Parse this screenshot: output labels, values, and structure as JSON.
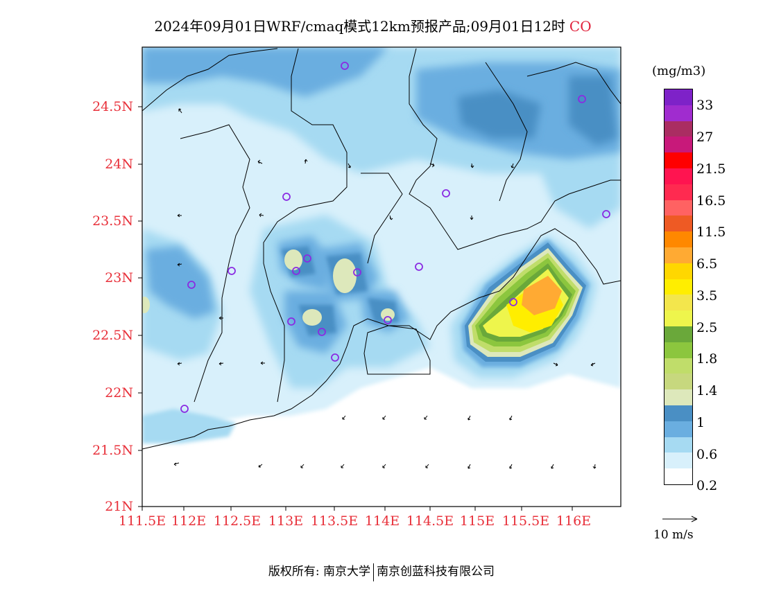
{
  "title": "2024年09月01日WRF/cmaq模式12km预报产品;09月01日12时",
  "species": "CO",
  "y_ticks": [
    "24.5N",
    "24N",
    "23.5N",
    "23N",
    "22.5N",
    "22N",
    "21.5N",
    "21N"
  ],
  "x_ticks": [
    "111.5E",
    "112E",
    "112.5E",
    "113E",
    "113.5E",
    "114E",
    "114.5E",
    "115E",
    "115.5E",
    "116E"
  ],
  "colorbar": {
    "unit": "(mg/m3)",
    "labels": [
      "33",
      "27",
      "21.5",
      "16.5",
      "11.5",
      "6.5",
      "3.5",
      "2.5",
      "1.8",
      "1.4",
      "1",
      "0.6",
      "0.2"
    ],
    "colors": [
      "#7e22c8",
      "#a02ccf",
      "#aa2d62",
      "#c8197a",
      "#ff0000",
      "#ff1450",
      "#ff2a50",
      "#ff6262",
      "#ee5a24",
      "#ff8800",
      "#ffaa33",
      "#ffd700",
      "#ffee00",
      "#f3e64c",
      "#eef54c",
      "#6aa83a",
      "#8cc63e",
      "#c0dd6a",
      "#c7d87e",
      "#dde8bb",
      "#4a8fc4",
      "#6aaee0",
      "#a6daf2",
      "#d8f0fb",
      "#ffffff"
    ]
  },
  "reference_vector": "10 m/s",
  "copyright": [
    "版权所有: 南京大学",
    "南京创蓝科技有限公司"
  ]
}
